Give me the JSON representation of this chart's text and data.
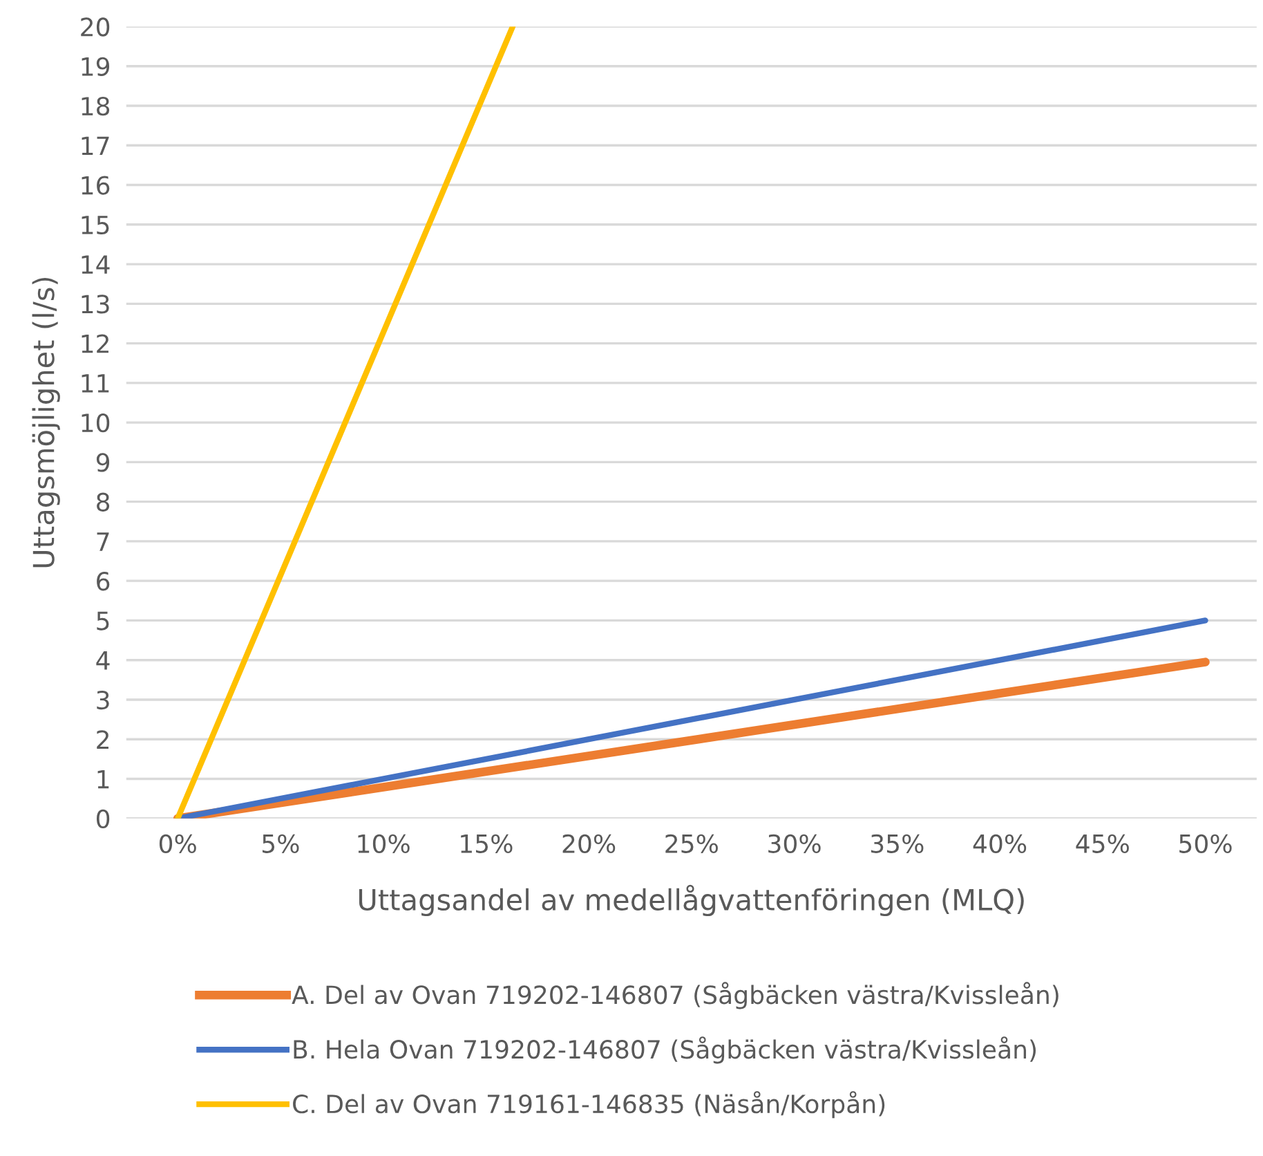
{
  "chart_data": {
    "type": "line",
    "xlabel": "Uttagsandel av medellågvattenföringen (MLQ)",
    "ylabel": "Uttagsmöjlighet (l/s)",
    "xlim": [
      -2.5,
      52.5
    ],
    "xticks": [
      {
        "value": 0,
        "label": "0%"
      },
      {
        "value": 5,
        "label": "5%"
      },
      {
        "value": 10,
        "label": "10%"
      },
      {
        "value": 15,
        "label": "15%"
      },
      {
        "value": 20,
        "label": "20%"
      },
      {
        "value": 25,
        "label": "25%"
      },
      {
        "value": 30,
        "label": "30%"
      },
      {
        "value": 35,
        "label": "35%"
      },
      {
        "value": 40,
        "label": "40%"
      },
      {
        "value": 45,
        "label": "45%"
      },
      {
        "value": 50,
        "label": "50%"
      }
    ],
    "ylim": [
      0,
      20
    ],
    "yticks": [
      0,
      1,
      2,
      3,
      4,
      5,
      6,
      7,
      8,
      9,
      10,
      11,
      12,
      13,
      14,
      15,
      16,
      17,
      18,
      19,
      20
    ],
    "grid": "y",
    "legend": "bottom",
    "series": [
      {
        "name": "A. Del av Ovan 719202-146807 (Sågbäcken västra/Kvissleån)",
        "color": "#ed7d31",
        "x": [
          0,
          50
        ],
        "values": [
          0,
          3.95
        ]
      },
      {
        "name": "B. Hela Ovan 719202-146807 (Sågbäcken västra/Kvissleån)",
        "color": "#4472c4",
        "x": [
          0,
          50
        ],
        "values": [
          0,
          5
        ]
      },
      {
        "name": "C. Del av Ovan 719161-146835 (Näsån/Korpån)",
        "color": "#ffc000",
        "x": [
          0,
          16.3
        ],
        "values": [
          0,
          20
        ]
      }
    ]
  }
}
